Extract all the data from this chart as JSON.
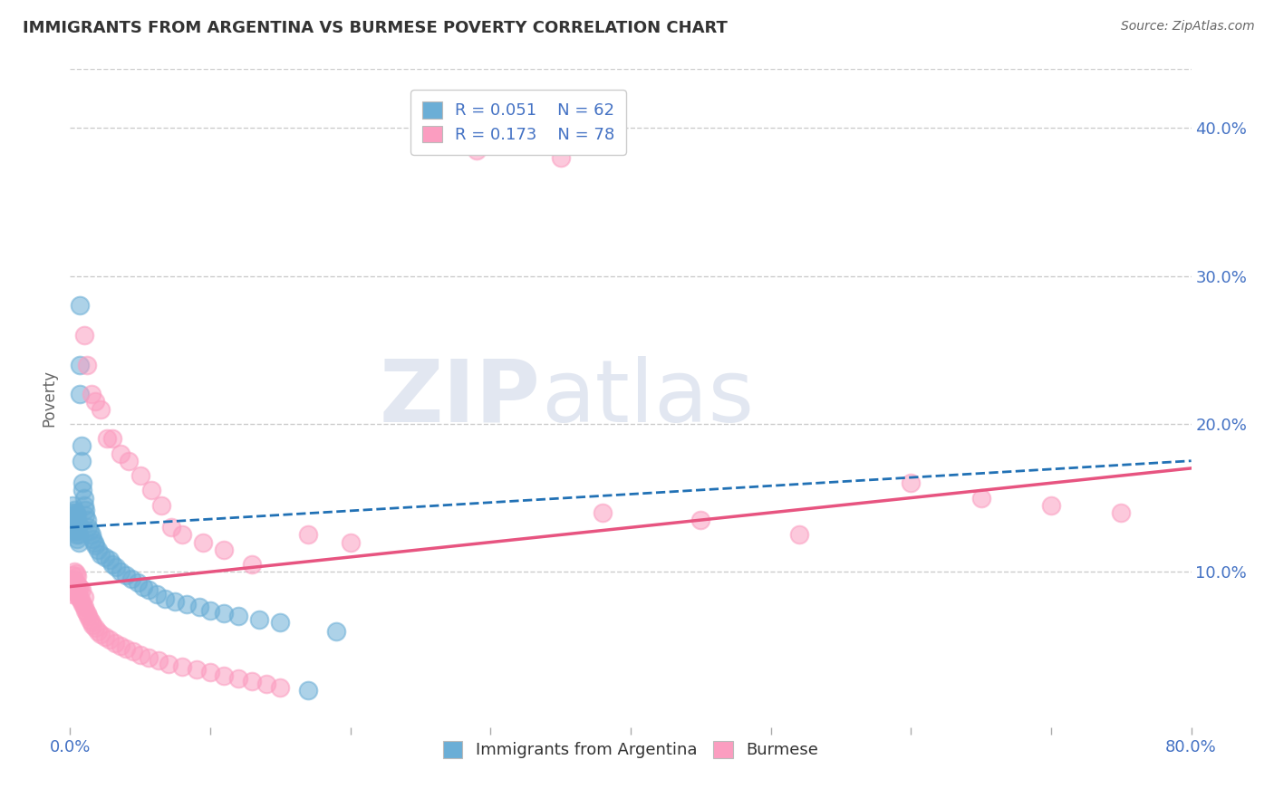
{
  "title": "IMMIGRANTS FROM ARGENTINA VS BURMESE POVERTY CORRELATION CHART",
  "source": "Source: ZipAtlas.com",
  "ylabel": "Poverty",
  "right_yticks": [
    0.1,
    0.2,
    0.3,
    0.4
  ],
  "right_yticklabels": [
    "10.0%",
    "20.0%",
    "30.0%",
    "40.0%"
  ],
  "legend_R_N": [
    {
      "R": "0.051",
      "N": "62",
      "color": "#6baed6"
    },
    {
      "R": "0.173",
      "N": "78",
      "color": "#fb9dc0"
    }
  ],
  "legend_labels_bottom": [
    "Immigrants from Argentina",
    "Burmese"
  ],
  "blue_color": "#6baed6",
  "pink_color": "#fb9dc0",
  "blue_line_color": "#2171b5",
  "pink_line_color": "#e75480",
  "watermark_zip": "ZIP",
  "watermark_atlas": "atlas",
  "background_color": "#ffffff",
  "xlim": [
    0.0,
    0.8
  ],
  "ylim": [
    -0.005,
    0.44
  ],
  "blue_x": [
    0.001,
    0.001,
    0.002,
    0.002,
    0.002,
    0.003,
    0.003,
    0.003,
    0.003,
    0.004,
    0.004,
    0.004,
    0.004,
    0.005,
    0.005,
    0.005,
    0.005,
    0.006,
    0.006,
    0.006,
    0.007,
    0.007,
    0.007,
    0.008,
    0.008,
    0.009,
    0.009,
    0.01,
    0.01,
    0.011,
    0.011,
    0.012,
    0.013,
    0.014,
    0.015,
    0.016,
    0.017,
    0.018,
    0.02,
    0.022,
    0.025,
    0.028,
    0.03,
    0.033,
    0.036,
    0.04,
    0.044,
    0.048,
    0.052,
    0.056,
    0.062,
    0.068,
    0.075,
    0.083,
    0.092,
    0.1,
    0.11,
    0.12,
    0.135,
    0.15,
    0.17,
    0.19
  ],
  "blue_y": [
    0.13,
    0.14,
    0.13,
    0.135,
    0.145,
    0.128,
    0.132,
    0.138,
    0.142,
    0.125,
    0.13,
    0.135,
    0.14,
    0.122,
    0.128,
    0.133,
    0.138,
    0.12,
    0.125,
    0.132,
    0.28,
    0.24,
    0.22,
    0.185,
    0.175,
    0.16,
    0.155,
    0.15,
    0.145,
    0.142,
    0.138,
    0.135,
    0.13,
    0.128,
    0.125,
    0.122,
    0.12,
    0.118,
    0.115,
    0.112,
    0.11,
    0.108,
    0.105,
    0.103,
    0.1,
    0.098,
    0.095,
    0.093,
    0.09,
    0.088,
    0.085,
    0.082,
    0.08,
    0.078,
    0.076,
    0.074,
    0.072,
    0.07,
    0.068,
    0.066,
    0.02,
    0.06
  ],
  "pink_x": [
    0.001,
    0.001,
    0.002,
    0.002,
    0.002,
    0.003,
    0.003,
    0.003,
    0.004,
    0.004,
    0.004,
    0.005,
    0.005,
    0.005,
    0.006,
    0.006,
    0.007,
    0.007,
    0.008,
    0.008,
    0.009,
    0.01,
    0.01,
    0.011,
    0.012,
    0.013,
    0.014,
    0.015,
    0.016,
    0.018,
    0.02,
    0.022,
    0.025,
    0.028,
    0.032,
    0.036,
    0.04,
    0.045,
    0.05,
    0.056,
    0.063,
    0.07,
    0.08,
    0.09,
    0.1,
    0.11,
    0.12,
    0.13,
    0.14,
    0.15,
    0.01,
    0.012,
    0.015,
    0.018,
    0.022,
    0.026,
    0.03,
    0.036,
    0.042,
    0.05,
    0.058,
    0.065,
    0.072,
    0.08,
    0.095,
    0.11,
    0.13,
    0.6,
    0.38,
    0.45,
    0.52,
    0.65,
    0.7,
    0.75,
    0.35,
    0.29,
    0.17,
    0.2
  ],
  "pink_y": [
    0.09,
    0.095,
    0.085,
    0.092,
    0.098,
    0.088,
    0.094,
    0.1,
    0.086,
    0.093,
    0.099,
    0.085,
    0.091,
    0.097,
    0.083,
    0.09,
    0.082,
    0.089,
    0.08,
    0.088,
    0.078,
    0.076,
    0.083,
    0.074,
    0.072,
    0.07,
    0.068,
    0.066,
    0.064,
    0.062,
    0.06,
    0.058,
    0.056,
    0.054,
    0.052,
    0.05,
    0.048,
    0.046,
    0.044,
    0.042,
    0.04,
    0.038,
    0.036,
    0.034,
    0.032,
    0.03,
    0.028,
    0.026,
    0.024,
    0.022,
    0.26,
    0.24,
    0.22,
    0.215,
    0.21,
    0.19,
    0.19,
    0.18,
    0.175,
    0.165,
    0.155,
    0.145,
    0.13,
    0.125,
    0.12,
    0.115,
    0.105,
    0.16,
    0.14,
    0.135,
    0.125,
    0.15,
    0.145,
    0.14,
    0.38,
    0.385,
    0.125,
    0.12
  ]
}
